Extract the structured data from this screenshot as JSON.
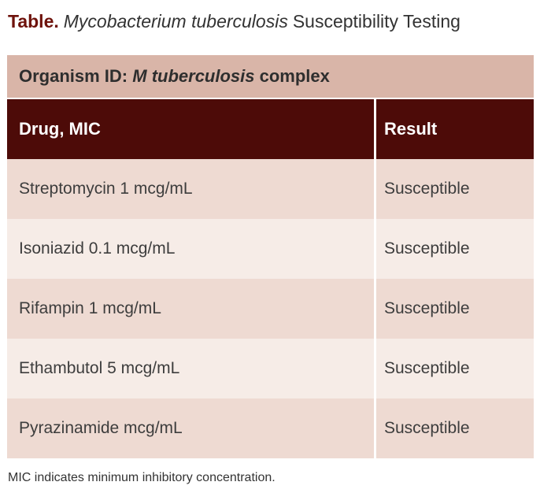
{
  "title": {
    "label": "Table.",
    "organism_italic": "Mycobacterium tuberculosis",
    "rest": "Susceptibility Testing"
  },
  "table": {
    "organism_header": {
      "prefix": "Organism ID: ",
      "organism": "M tuberculosis",
      "suffix": " complex"
    },
    "columns": [
      "Drug, MIC",
      "Result"
    ],
    "rows": [
      {
        "drug": "Streptomycin 1 mcg/mL",
        "result": "Susceptible"
      },
      {
        "drug": "Isoniazid 0.1 mcg/mL",
        "result": "Susceptible"
      },
      {
        "drug": "Rifampin 1 mcg/mL",
        "result": "Susceptible"
      },
      {
        "drug": "Ethambutol 5 mcg/mL",
        "result": "Susceptible"
      },
      {
        "drug": "Pyrazinamide mcg/mL",
        "result": "Susceptible"
      }
    ]
  },
  "footnote": "MIC indicates minimum inhibitory concentration.",
  "colors": {
    "title_accent": "#6e120b",
    "header_background": "#4d0b08",
    "header_text": "#ffffff",
    "organism_row_background": "#d9b5a8",
    "row_odd_background": "#eedad2",
    "row_even_background": "#f6ece7",
    "body_text": "#3d3d3d"
  }
}
